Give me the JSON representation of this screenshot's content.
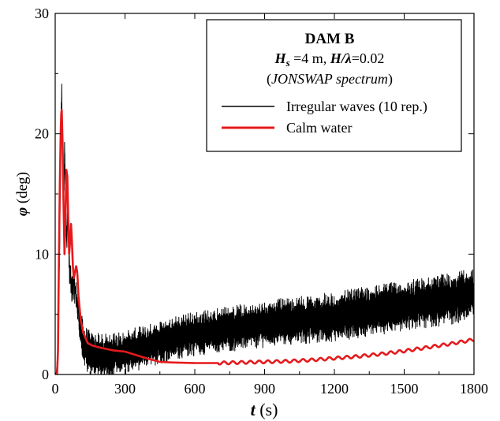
{
  "chart_data": {
    "type": "line",
    "xlabel": {
      "symbol": "t",
      "unit": " (s)"
    },
    "ylabel": {
      "symbol": "φ",
      "unit": " (deg)"
    },
    "xlim": [
      0,
      1800
    ],
    "ylim": [
      0,
      30
    ],
    "xticks": [
      0,
      300,
      600,
      900,
      1200,
      1500,
      1800
    ],
    "yticks": [
      0,
      10,
      20,
      30
    ],
    "grid": false,
    "legend_position": "top-right",
    "legend": {
      "title": "DAM B",
      "line2": {
        "hs_sym": "H",
        "hs_sub": "s",
        "hs_val": " =4 m, ",
        "hl_sym": "H/λ",
        "hl_val": "=0.02"
      },
      "line3": {
        "open": "(",
        "spectrum": "JONSWAP spectrum",
        "close": ")"
      }
    },
    "series": [
      {
        "name": "Irregular waves (10 rep.)",
        "color": "#000000",
        "noise": true,
        "band_halfwidth": [
          [
            120,
            1.6
          ],
          [
            400,
            1.5
          ],
          [
            1000,
            1.7
          ],
          [
            1800,
            1.9
          ]
        ],
        "points": [
          [
            0,
            0
          ],
          [
            5,
            0.2
          ],
          [
            10,
            1.5
          ],
          [
            15,
            6
          ],
          [
            20,
            12
          ],
          [
            25,
            20
          ],
          [
            28,
            23.7
          ],
          [
            32,
            17
          ],
          [
            36,
            12
          ],
          [
            40,
            19
          ],
          [
            45,
            15
          ],
          [
            50,
            11
          ],
          [
            55,
            14
          ],
          [
            60,
            9
          ],
          [
            65,
            8.2
          ],
          [
            70,
            7
          ],
          [
            80,
            7.5
          ],
          [
            90,
            6.5
          ],
          [
            100,
            5
          ],
          [
            110,
            3.5
          ],
          [
            120,
            2.5
          ],
          [
            150,
            1.7
          ],
          [
            200,
            1.5
          ],
          [
            300,
            1.8
          ],
          [
            400,
            2.4
          ],
          [
            500,
            3.0
          ],
          [
            600,
            3.4
          ],
          [
            700,
            3.7
          ],
          [
            800,
            3.9
          ],
          [
            900,
            4.2
          ],
          [
            1000,
            4.4
          ],
          [
            1100,
            4.6
          ],
          [
            1200,
            4.8
          ],
          [
            1300,
            5.1
          ],
          [
            1400,
            5.4
          ],
          [
            1500,
            5.7
          ],
          [
            1600,
            6.0
          ],
          [
            1700,
            6.3
          ],
          [
            1800,
            6.6
          ]
        ]
      },
      {
        "name": "Calm water",
        "color": "#e41a1c",
        "noise": false,
        "points": [
          [
            0,
            0
          ],
          [
            8,
            0
          ],
          [
            12,
            2
          ],
          [
            15,
            8
          ],
          [
            20,
            16
          ],
          [
            25,
            21.5
          ],
          [
            28,
            22
          ],
          [
            32,
            19
          ],
          [
            36,
            14
          ],
          [
            40,
            10
          ],
          [
            44,
            13
          ],
          [
            48,
            17
          ],
          [
            52,
            16.5
          ],
          [
            56,
            13
          ],
          [
            60,
            10
          ],
          [
            64,
            11
          ],
          [
            68,
            12.5
          ],
          [
            72,
            11
          ],
          [
            76,
            9
          ],
          [
            80,
            8
          ],
          [
            85,
            8.5
          ],
          [
            90,
            9
          ],
          [
            95,
            8.5
          ],
          [
            100,
            6.5
          ],
          [
            110,
            4.5
          ],
          [
            120,
            3.5
          ],
          [
            140,
            2.6
          ],
          [
            160,
            2.4
          ],
          [
            200,
            2.2
          ],
          [
            250,
            2.0
          ],
          [
            300,
            1.9
          ],
          [
            350,
            1.6
          ],
          [
            400,
            1.3
          ],
          [
            450,
            1.05
          ],
          [
            500,
            1.0
          ],
          [
            600,
            0.95
          ],
          [
            700,
            0.95
          ],
          [
            800,
            1.0
          ],
          [
            900,
            1.05
          ],
          [
            1000,
            1.1
          ],
          [
            1100,
            1.2
          ],
          [
            1200,
            1.35
          ],
          [
            1300,
            1.5
          ],
          [
            1400,
            1.7
          ],
          [
            1500,
            1.95
          ],
          [
            1600,
            2.25
          ],
          [
            1700,
            2.55
          ],
          [
            1800,
            2.9
          ]
        ]
      }
    ]
  }
}
